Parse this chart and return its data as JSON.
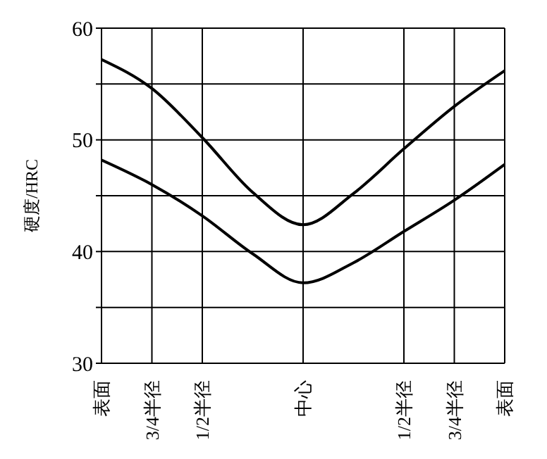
{
  "chart_data": {
    "type": "line",
    "ylabel": "硬度/HRC",
    "categories": [
      "表面",
      "3/4半径",
      "1/2半径",
      null,
      "中心",
      null,
      "1/2半径",
      "3/4半径",
      "表面"
    ],
    "ylim": [
      30,
      60
    ],
    "yticks": [
      30,
      {
        "value": 35,
        "label": null
      },
      40,
      {
        "value": 45,
        "label": null
      },
      50,
      {
        "value": 55,
        "label": null
      },
      60
    ],
    "grid": true,
    "marker": "none",
    "line_style": "solid",
    "series": [
      {
        "color": "#000000",
        "values": [
          57.2,
          54.6,
          50.2,
          45.3,
          42.4,
          45.2,
          49.2,
          53,
          56.2
        ]
      },
      {
        "color": "#000000",
        "values": [
          48.2,
          46,
          43.2,
          39.8,
          37.2,
          39,
          41.8,
          44.6,
          47.8
        ]
      }
    ]
  }
}
